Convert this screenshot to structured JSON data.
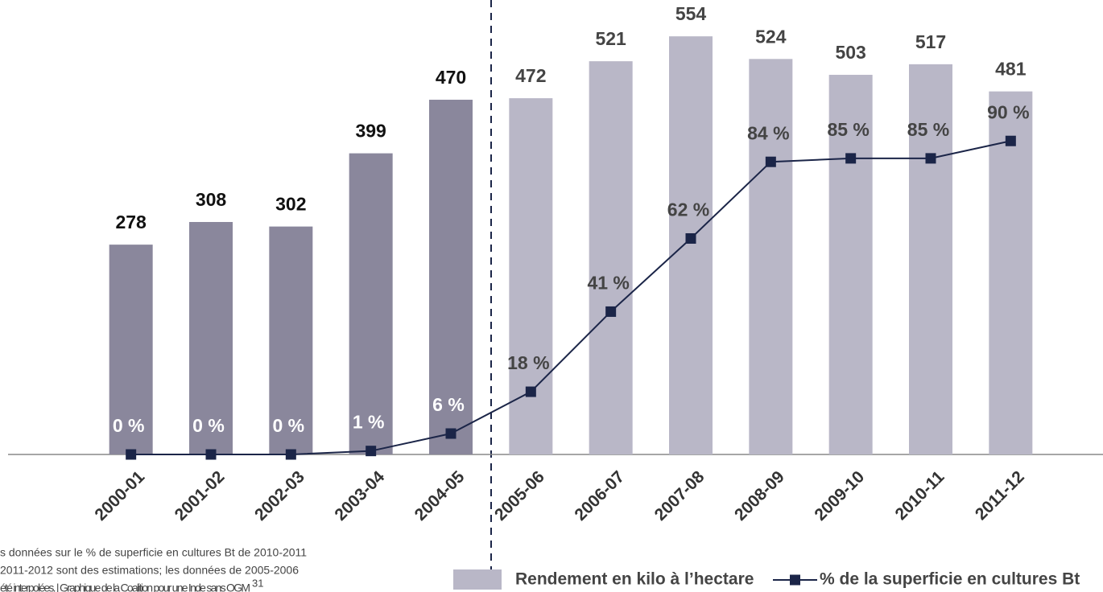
{
  "chart_data": {
    "type": "bar",
    "categories": [
      "2000-01",
      "2001-02",
      "2002-03",
      "2003-04",
      "2004-05",
      "2005-06",
      "2006-07",
      "2007-08",
      "2008-09",
      "2009-10",
      "2010-11",
      "2011-12"
    ],
    "series": [
      {
        "name": "Rendement en kilo à l’hectare",
        "type": "bar",
        "color": "#b9b7c7",
        "colors": [
          "#8a879c",
          "#8a879c",
          "#8a879c",
          "#8a879c",
          "#8a879c",
          "#b9b7c7",
          "#b9b7c7",
          "#b9b7c7",
          "#b9b7c7",
          "#b9b7c7",
          "#b9b7c7",
          "#b9b7c7"
        ],
        "values": [
          278,
          308,
          302,
          399,
          470,
          472,
          521,
          554,
          524,
          503,
          517,
          481
        ]
      },
      {
        "name": "% de la superficie en cultures Bt",
        "type": "line",
        "axis": "y2",
        "color": "#1b2548",
        "values": [
          0,
          0,
          0,
          1,
          6,
          18,
          41,
          62,
          84,
          85,
          85,
          90
        ],
        "value_labels": [
          "0 %",
          "0 %",
          "0 %",
          "1 %",
          "6 %",
          "18 %",
          "41 %",
          "62 %",
          "84 %",
          "85 %",
          "85 %",
          "90 %"
        ]
      }
    ],
    "ylim": [
      0,
      600
    ],
    "y2lim": [
      0,
      130
    ],
    "notes": [
      "s données sur le % de superficie en cultures Bt de 2010-2011",
      "2011-2012 sont des estimations; les données de 2005-2006",
      "été interpolées. | Graphique de la Coalition pour une Inde sans OGM"
    ],
    "note_ref": "31"
  }
}
